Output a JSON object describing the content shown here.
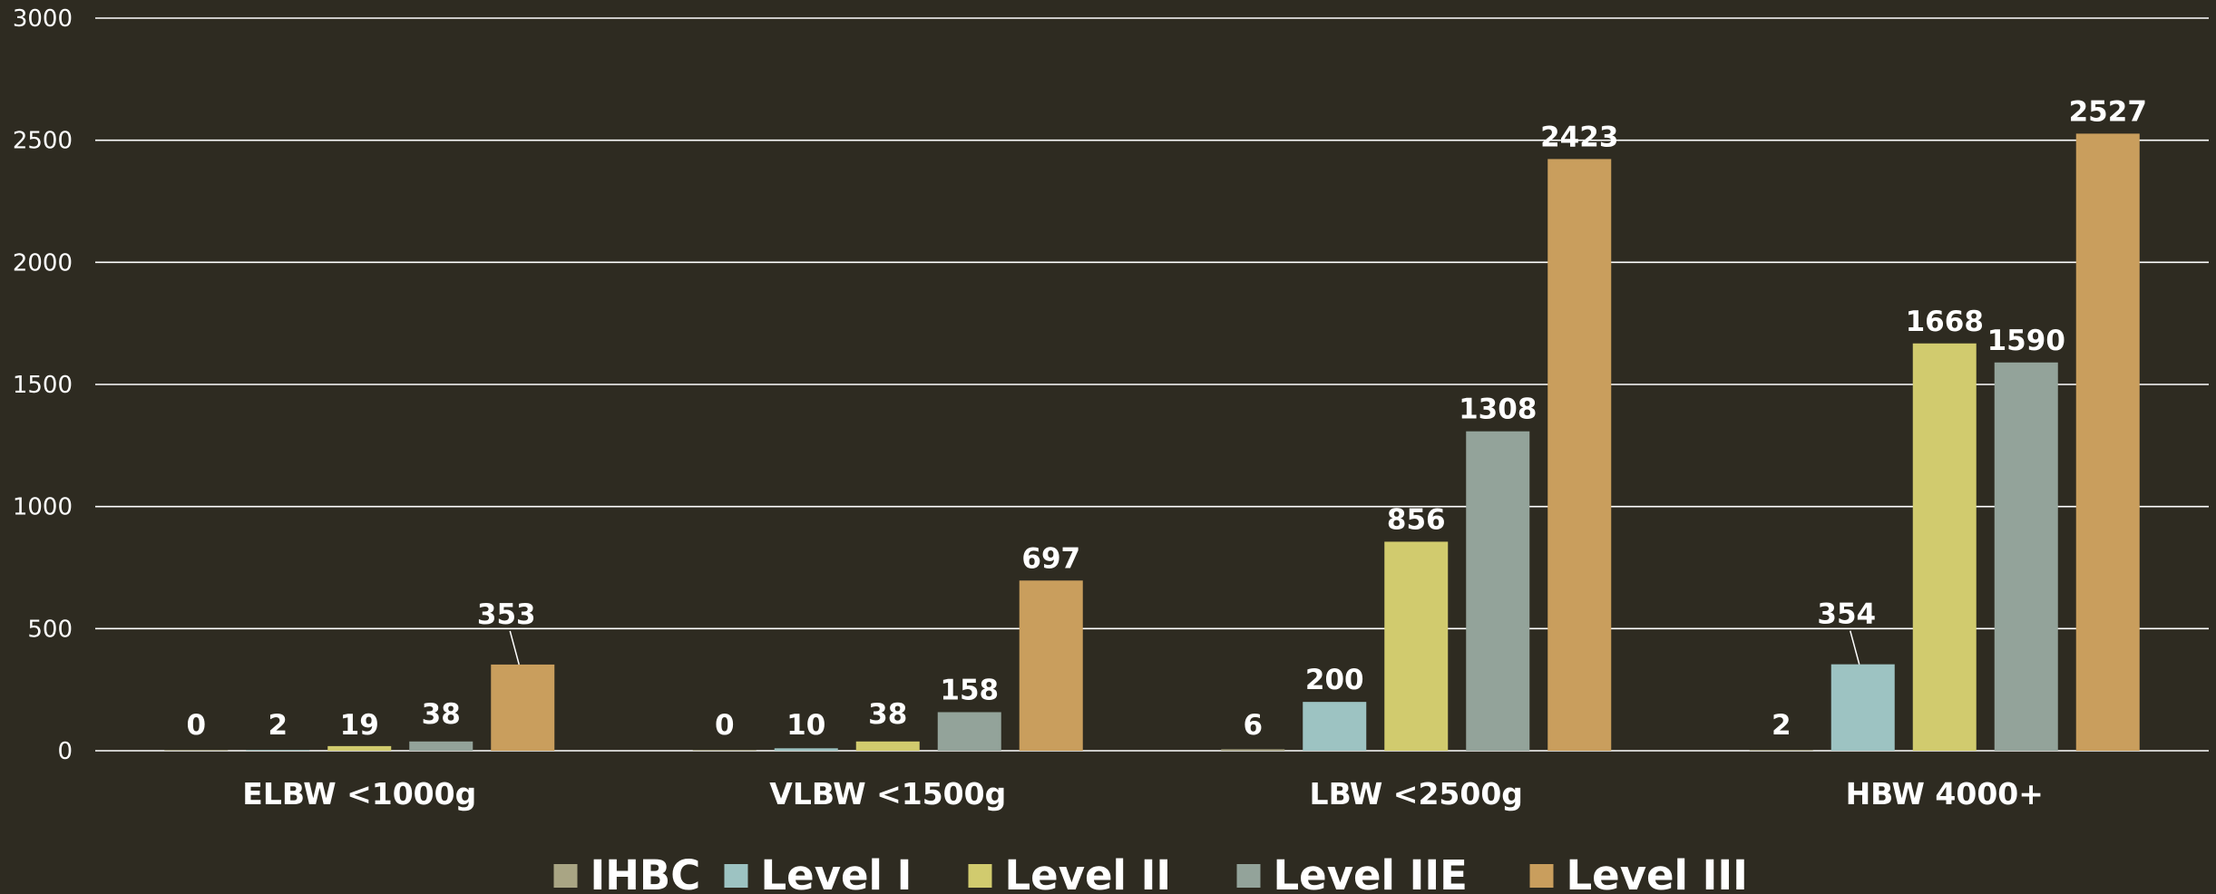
{
  "chart_data": {
    "type": "bar",
    "title": "",
    "xlabel": "",
    "ylabel": "",
    "categories": [
      "ELBW <1000g",
      "VLBW  <1500g",
      "LBW <2500g",
      "HBW 4000+"
    ],
    "series": [
      {
        "name": "IHBC",
        "color": "#a9a584",
        "values": [
          0,
          0,
          6,
          2
        ]
      },
      {
        "name": "Level I",
        "color": "#9dc3c2",
        "values": [
          2,
          10,
          200,
          354
        ]
      },
      {
        "name": "Level II",
        "color": "#d1cb6e",
        "values": [
          19,
          38,
          856,
          1668
        ]
      },
      {
        "name": "Level IIE",
        "color": "#93a39a",
        "values": [
          38,
          158,
          1308,
          1590
        ]
      },
      {
        "name": "Level III",
        "color": "#c99e5d",
        "values": [
          353,
          697,
          2423,
          2527
        ]
      }
    ],
    "ylim": [
      0,
      3000
    ],
    "yticks": [
      0,
      500,
      1000,
      1500,
      2000,
      2500,
      3000
    ],
    "grid": true,
    "legend": "bottom",
    "colors": {
      "background": "#2e2b21",
      "grid": "#ffffff",
      "text": "#ffffff"
    }
  }
}
